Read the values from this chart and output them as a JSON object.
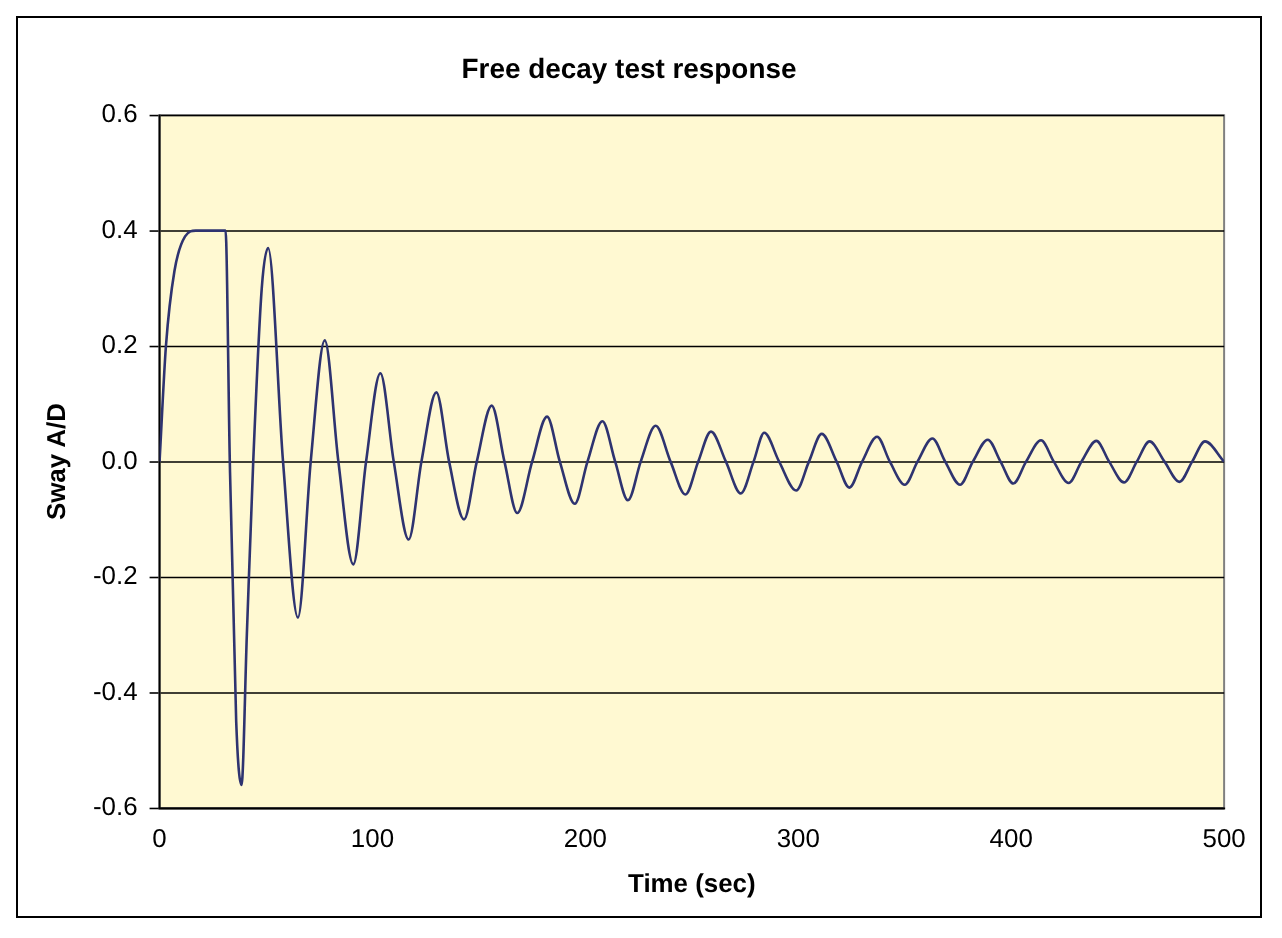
{
  "chart_data": {
    "type": "line",
    "title": "Free decay test response",
    "xlabel": "Time (sec)",
    "ylabel": "Sway A/D",
    "xlim": [
      0,
      500
    ],
    "xticks": [
      0,
      100,
      200,
      300,
      400,
      500
    ],
    "ylim": [
      -0.6,
      0.6
    ],
    "yticks": [
      -0.6,
      -0.4,
      -0.2,
      {
        "value": 0,
        "label": "0.0"
      },
      0.2,
      0.4,
      0.6
    ],
    "grid": "y",
    "legend": false,
    "marker": "none",
    "line_style": "solid",
    "series": [
      {
        "color": "#2e3370",
        "x": [
          0,
          3,
          7,
          12,
          17,
          31,
          33,
          36,
          38.5,
          41,
          44,
          48,
          51,
          58,
          65,
          71,
          77.6,
          84,
          91,
          97,
          103.7,
          110,
          117,
          123,
          130,
          136,
          143,
          149,
          156,
          162,
          168,
          175,
          182,
          188,
          195,
          201,
          208,
          214,
          220,
          226,
          233,
          240,
          247,
          253,
          259,
          266,
          273,
          279,
          284,
          291,
          299,
          305,
          311,
          318,
          324,
          330,
          337,
          343,
          350,
          356,
          363,
          369,
          376,
          382,
          389,
          395,
          401,
          407,
          414,
          420,
          427,
          433,
          440,
          446,
          453,
          459,
          465,
          472,
          479,
          485,
          491,
          500
        ],
        "values": [
          0,
          0.2,
          0.33,
          0.39,
          0.4,
          0.4,
          0,
          -0.45,
          -0.56,
          -0.3,
          0,
          0.3,
          0.37,
          0,
          -0.27,
          0,
          0.21,
          0,
          -0.178,
          0,
          0.153,
          0,
          -0.135,
          0,
          0.12,
          0,
          -0.1,
          0,
          0.097,
          0,
          -0.089,
          0,
          0.078,
          0,
          -0.073,
          0,
          0.07,
          0,
          -0.067,
          0,
          0.062,
          0,
          -0.057,
          0,
          0.052,
          0,
          -0.055,
          0,
          0.05,
          0,
          -0.05,
          0,
          0.048,
          0,
          -0.045,
          0,
          0.043,
          0,
          -0.04,
          0,
          0.04,
          0,
          -0.04,
          0,
          0.038,
          0,
          -0.038,
          0,
          0.037,
          0,
          -0.037,
          0,
          0.036,
          0,
          -0.036,
          0,
          0.035,
          0,
          -0.035,
          0,
          0.035,
          0
        ]
      }
    ]
  }
}
